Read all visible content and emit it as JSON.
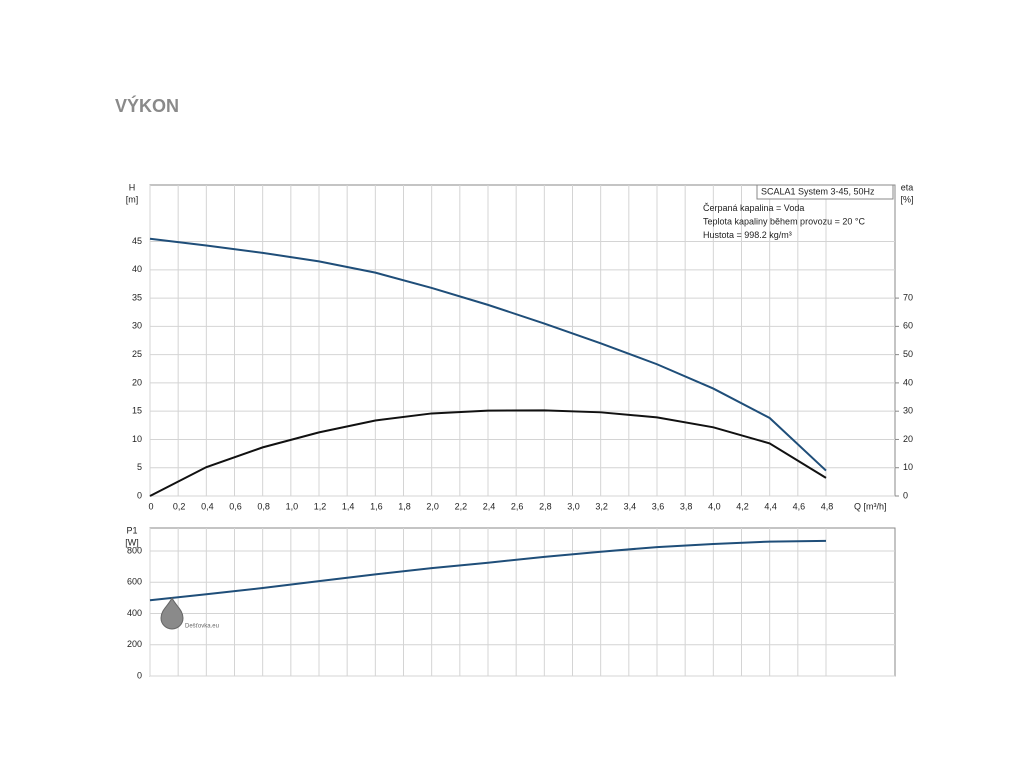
{
  "title": "VÝKON",
  "watermark": "Dešťovka.eu",
  "chart_data": [
    {
      "type": "line",
      "ylabel": "H",
      "yunit": "[m]",
      "y2label": "eta",
      "y2unit": "[%]",
      "xlabel": "Q [m³/h]",
      "annotations": [
        "SCALA1 System 3-45, 50Hz",
        "Čerpaná kapalina = Voda",
        "Teplota kapaliny během provozu = 20 °C",
        "Hustota = 998.2 kg/m³"
      ],
      "x": [
        0,
        0.4,
        0.8,
        1.2,
        1.6,
        2.0,
        2.4,
        2.8,
        3.2,
        3.6,
        4.0,
        4.4,
        4.8
      ],
      "series": [
        {
          "name": "H",
          "color": "#1f4e79",
          "values": [
            45.5,
            44.3,
            43.0,
            41.5,
            39.5,
            36.8,
            33.8,
            30.5,
            27.0,
            23.3,
            19.0,
            13.8,
            4.5
          ]
        },
        {
          "name": "eta",
          "color": "#111111",
          "axis": "y2",
          "values": [
            0,
            10.2,
            17.2,
            22.5,
            26.7,
            29.2,
            30.2,
            30.3,
            29.6,
            27.8,
            24.3,
            18.6,
            6.4
          ]
        }
      ],
      "xlim": [
        0,
        5.29
      ],
      "xticks": [
        0,
        {
          "value": 0.2,
          "label": "0,2"
        },
        {
          "value": 0.4,
          "label": "0,4"
        },
        {
          "value": 0.6,
          "label": "0,6"
        },
        {
          "value": 0.8,
          "label": "0,8"
        },
        {
          "value": 1.0,
          "label": "1,0"
        },
        {
          "value": 1.2,
          "label": "1,2"
        },
        {
          "value": 1.4,
          "label": "1,4"
        },
        {
          "value": 1.6,
          "label": "1,6"
        },
        {
          "value": 1.8,
          "label": "1,8"
        },
        {
          "value": 2.0,
          "label": "2,0"
        },
        {
          "value": 2.2,
          "label": "2,2"
        },
        {
          "value": 2.4,
          "label": "2,4"
        },
        {
          "value": 2.6,
          "label": "2,6"
        },
        {
          "value": 2.8,
          "label": "2,8"
        },
        {
          "value": 3.0,
          "label": "3,0"
        },
        {
          "value": 3.2,
          "label": "3,2"
        },
        {
          "value": 3.4,
          "label": "3,4"
        },
        {
          "value": 3.6,
          "label": "3,6"
        },
        {
          "value": 3.8,
          "label": "3,8"
        },
        {
          "value": 4.0,
          "label": "4,0"
        },
        {
          "value": 4.2,
          "label": "4,2"
        },
        {
          "value": 4.4,
          "label": "4,4"
        },
        {
          "value": 4.6,
          "label": "4,6"
        },
        {
          "value": 4.8,
          "label": "4,8"
        }
      ],
      "ylim": [
        0,
        55
      ],
      "yticks": [
        0,
        5,
        10,
        15,
        20,
        25,
        30,
        35,
        40,
        45
      ],
      "y2lim": [
        0,
        110
      ],
      "y2ticks": [
        0,
        10,
        20,
        30,
        40,
        50,
        60,
        70
      ],
      "grid": true
    },
    {
      "type": "line",
      "ylabel": "P1",
      "yunit": "[W]",
      "x": [
        0,
        0.4,
        0.8,
        1.2,
        1.6,
        2.0,
        2.4,
        2.8,
        3.2,
        3.6,
        4.0,
        4.4,
        4.8
      ],
      "series": [
        {
          "name": "P1",
          "color": "#1f4e79",
          "values": [
            485,
            523,
            563,
            607,
            650,
            690,
            725,
            762,
            795,
            825,
            845,
            860,
            865
          ]
        }
      ],
      "xlim": [
        0,
        5.29
      ],
      "ylim": [
        0,
        947
      ],
      "yticks": [
        0,
        200,
        400,
        600,
        800
      ],
      "grid": true
    }
  ]
}
